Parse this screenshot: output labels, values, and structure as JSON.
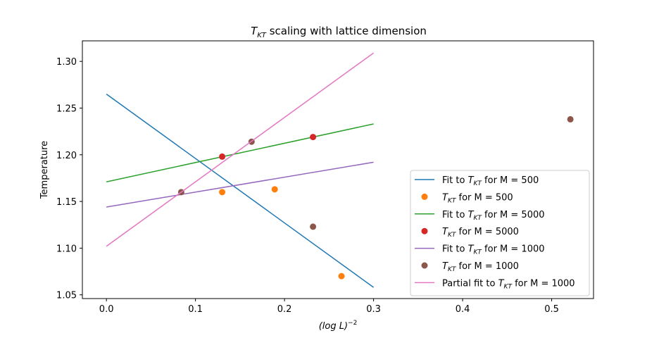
{
  "chart_data": {
    "type": "line",
    "title_main": "T",
    "title_sub": "KT",
    "title_rest": " scaling with lattice dimension",
    "xlabel_main": "(log L)",
    "xlabel_sup": "−2",
    "ylabel": "Temperature",
    "xlim": [
      -0.027,
      0.547
    ],
    "ylim": [
      1.046,
      1.322
    ],
    "xticks": [
      0.0,
      0.1,
      0.2,
      0.3,
      0.4,
      0.5
    ],
    "xtick_labels": [
      "0.0",
      "0.1",
      "0.2",
      "0.3",
      "0.4",
      "0.5"
    ],
    "yticks": [
      1.05,
      1.1,
      1.15,
      1.2,
      1.25,
      1.3
    ],
    "ytick_labels": [
      "1.05",
      "1.10",
      "1.15",
      "1.20",
      "1.25",
      "1.30"
    ],
    "grid": false,
    "legend_position": "lower-right",
    "series": [
      {
        "kind": "line",
        "color": "#1f77b4",
        "x": [
          0.0,
          0.3
        ],
        "y": [
          1.265,
          1.058
        ],
        "legend_pre": "Fit to ",
        "legend_post": " for M = 500"
      },
      {
        "kind": "scatter",
        "color": "#ff7f0e",
        "x": [
          0.13,
          0.189,
          0.264
        ],
        "y": [
          1.16,
          1.163,
          1.07
        ],
        "legend_pre": "",
        "legend_post": " for M = 500"
      },
      {
        "kind": "line",
        "color": "#2ca02c",
        "x": [
          0.0,
          0.3
        ],
        "y": [
          1.171,
          1.233
        ],
        "legend_pre": "Fit to ",
        "legend_post": " for M = 5000"
      },
      {
        "kind": "scatter",
        "color": "#d62728",
        "x": [
          0.13,
          0.232
        ],
        "y": [
          1.198,
          1.219
        ],
        "legend_pre": "",
        "legend_post": " for M = 5000"
      },
      {
        "kind": "line",
        "color": "#9467bd",
        "x": [
          0.0,
          0.3
        ],
        "y": [
          1.144,
          1.192
        ],
        "legend_pre": "Fit to ",
        "legend_post": " for M = 1000"
      },
      {
        "kind": "scatter",
        "color": "#8c564b",
        "x": [
          0.084,
          0.163,
          0.232,
          0.521
        ],
        "y": [
          1.16,
          1.214,
          1.123,
          1.238
        ],
        "legend_pre": "",
        "legend_post": " for M = 1000"
      },
      {
        "kind": "line",
        "color": "#e377c2",
        "x": [
          0.0,
          0.3
        ],
        "y": [
          1.102,
          1.309
        ],
        "legend_pre": "Partial fit to ",
        "legend_post": " for M = 1000"
      }
    ],
    "legend_symbol_main": "T",
    "legend_symbol_sub": "KT"
  }
}
